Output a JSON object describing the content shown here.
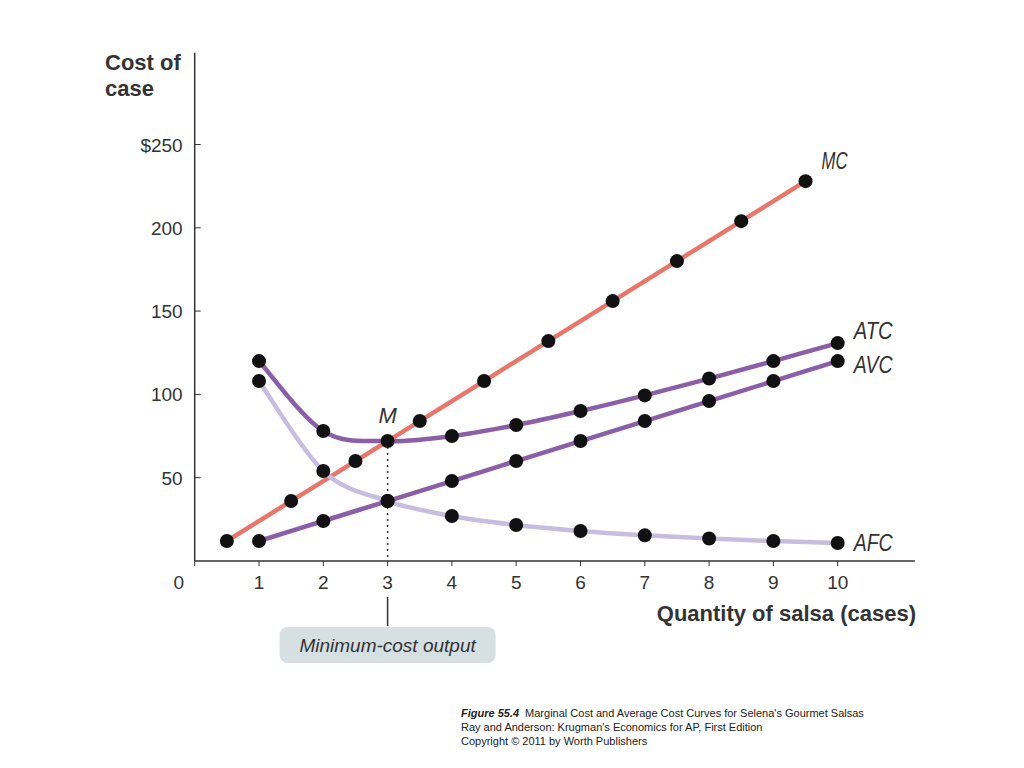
{
  "chart_data": {
    "type": "line",
    "y_label": "Cost of case",
    "x_label": "Quantity of salsa (cases)",
    "xlim": [
      0,
      11.2
    ],
    "ylim": [
      0,
      305
    ],
    "xticks": [
      0,
      1,
      2,
      3,
      4,
      5,
      6,
      7,
      8,
      9,
      10
    ],
    "yticks": [
      50,
      100,
      150,
      200,
      {
        "value": 250,
        "label": "$250"
      }
    ],
    "grid": false,
    "marker": "circle",
    "series": [
      {
        "name": "MC",
        "color": "#e8766b",
        "x": [
          0.5,
          1.5,
          2.5,
          3.5,
          4.5,
          5.5,
          6.5,
          7.5,
          8.5,
          9.5
        ],
        "values": [
          12,
          36,
          60,
          84,
          108,
          132,
          156,
          180,
          204,
          228
        ]
      },
      {
        "name": "ATC",
        "color": "#8b5ea8",
        "x": [
          1,
          2,
          3,
          4,
          5,
          6,
          7,
          8,
          9,
          10
        ],
        "values": [
          120,
          78,
          72,
          75,
          81.6,
          90,
          99.4,
          109.5,
          120,
          130.8
        ]
      },
      {
        "name": "AVC",
        "color": "#8b5ea8",
        "x": [
          1,
          2,
          3,
          4,
          5,
          6,
          7,
          8,
          9,
          10
        ],
        "values": [
          12,
          24,
          36,
          48,
          60,
          72,
          84,
          96,
          108,
          120
        ]
      },
      {
        "name": "AFC",
        "color": "#c6bde0",
        "x": [
          1,
          2,
          3,
          4,
          5,
          6,
          7,
          8,
          9,
          10
        ],
        "values": [
          108,
          54,
          36,
          27,
          21.6,
          18,
          15.4,
          13.5,
          12,
          10.8
        ]
      }
    ],
    "annotations": [
      {
        "text": "M",
        "x": 3,
        "y": 72
      },
      {
        "text": "Minimum-cost output",
        "x": 3
      }
    ],
    "caption": {
      "figure": "Figure 55.4",
      "lines": [
        "Marginal Cost and Average Cost Curves for Selena's Gourmet Salsas",
        "Ray and Anderson: Krugman's Economics for AP, First Edition",
        "Copyright © 2011 by Worth Publishers"
      ]
    }
  }
}
